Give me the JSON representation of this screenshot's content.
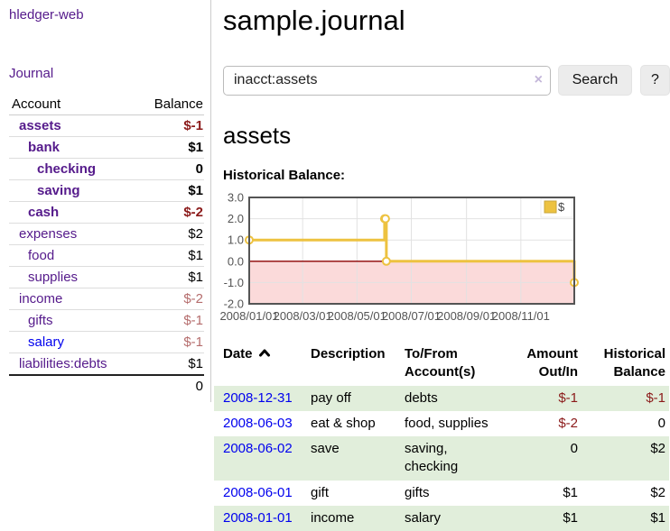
{
  "sidebar": {
    "brand": "hledger-web",
    "nav": {
      "journal": "Journal"
    },
    "table": {
      "headers": {
        "account": "Account",
        "balance": "Balance"
      },
      "accounts": [
        {
          "name": "assets",
          "balance": "$-1"
        },
        {
          "name": "bank",
          "balance": "$1"
        },
        {
          "name": "checking",
          "balance": "0"
        },
        {
          "name": "saving",
          "balance": "$1"
        },
        {
          "name": "cash",
          "balance": "$-2"
        },
        {
          "name": "expenses",
          "balance": "$2"
        },
        {
          "name": "food",
          "balance": "$1"
        },
        {
          "name": "supplies",
          "balance": "$1"
        },
        {
          "name": "income",
          "balance": "$-2"
        },
        {
          "name": "gifts",
          "balance": "$-1"
        },
        {
          "name": "salary",
          "balance": "$-1"
        },
        {
          "name": "liabilities:debts",
          "balance": "$1"
        }
      ],
      "total": "0"
    }
  },
  "header": {
    "title": "sample.journal"
  },
  "search": {
    "value": "inacct:assets",
    "clear_icon": "×",
    "button": "Search",
    "help_button": "?"
  },
  "account_page": {
    "heading": "assets",
    "chart_label": "Historical Balance:"
  },
  "chart_data": {
    "type": "line",
    "title": "Historical Balance",
    "step": true,
    "series": [
      {
        "name": "$",
        "color": "#edc240",
        "points": [
          {
            "date": "2008-01-01",
            "value": 1
          },
          {
            "date": "2008-06-01",
            "value": 2
          },
          {
            "date": "2008-06-02",
            "value": 2
          },
          {
            "date": "2008-06-03",
            "value": 0
          },
          {
            "date": "2008-12-31",
            "value": -1
          }
        ]
      }
    ],
    "x_range": [
      "2008-01-01",
      "2008-12-31"
    ],
    "x_ticks": [
      "2008/01/01",
      "2008/03/01",
      "2008/05/01",
      "2008/07/01",
      "2008/09/01",
      "2008/11/01"
    ],
    "ylim": [
      -2,
      3
    ],
    "y_ticks": [
      "3.0",
      "2.0",
      "1.0",
      "0.0",
      "-1.0",
      "-2.0"
    ],
    "grid": true,
    "legend_position": "top-right",
    "negative_fill": "#fbdada",
    "zero_line_color": "#8b0000"
  },
  "register_table": {
    "headers": {
      "date": "Date",
      "description": "Description",
      "accounts": "To/From\nAccount(s)",
      "amount": "Amount\nOut/In",
      "balance": "Historical\nBalance"
    },
    "rows": [
      {
        "date": "2008-12-31",
        "description": "pay off",
        "accounts": [
          "debts"
        ],
        "amount": "$-1",
        "balance": "$-1"
      },
      {
        "date": "2008-06-03",
        "description": "eat & shop",
        "accounts": [
          "food, supplies"
        ],
        "amount": "$-2",
        "balance": "0"
      },
      {
        "date": "2008-06-02",
        "description": "save",
        "accounts": [
          "saving,",
          "checking"
        ],
        "amount": "0",
        "balance": "$2"
      },
      {
        "date": "2008-06-01",
        "description": "gift",
        "accounts": [
          "gifts"
        ],
        "amount": "$1",
        "balance": "$2"
      },
      {
        "date": "2008-01-01",
        "description": "income",
        "accounts": [
          "salary"
        ],
        "amount": "$1",
        "balance": "$1"
      }
    ]
  },
  "colors": {
    "link_visited_purple": "#551a8b",
    "link_blue": "#0000ee",
    "negative_dark": "#8b1a1a",
    "negative_light": "#b56d6d",
    "row_stripe_green": "#e1eedb",
    "chart_series_gold": "#edc240",
    "chart_negative_pink": "#fbdada",
    "chart_zero_line": "#8b0000",
    "chart_border_gray": "#545454"
  }
}
